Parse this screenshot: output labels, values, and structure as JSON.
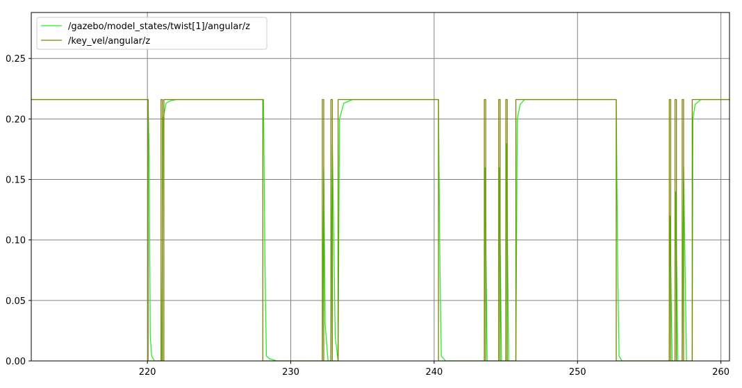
{
  "chart_data": {
    "type": "line",
    "xlim": [
      211.9,
      260.6
    ],
    "ylim": [
      0.0,
      0.288
    ],
    "xticks": [
      220,
      230,
      240,
      250,
      260
    ],
    "yticks": [
      0.0,
      0.05,
      0.1,
      0.15,
      0.2,
      0.25
    ],
    "xtick_labels": [
      "220",
      "230",
      "240",
      "250",
      "260"
    ],
    "ytick_labels": [
      "0.00",
      "0.05",
      "0.10",
      "0.15",
      "0.20",
      "0.25"
    ],
    "grid": true,
    "legend_position": "top-left",
    "high_value": 0.216,
    "series": [
      {
        "name": "/gazebo/model_states/twist[1]/angular/z",
        "color": "#22ee22",
        "x": [
          211.9,
          220.05,
          220.12,
          220.2,
          220.3,
          220.5,
          221.0,
          221.1,
          221.3,
          221.6,
          222.0,
          228.1,
          228.2,
          228.3,
          228.5,
          229.0,
          232.2,
          232.3,
          232.4,
          232.6,
          232.8,
          232.9,
          233.1,
          233.3,
          233.4,
          233.7,
          234.3,
          240.3,
          240.4,
          240.5,
          240.8,
          243.5,
          243.55,
          243.7,
          244.5,
          244.55,
          244.7,
          245.0,
          245.05,
          245.2,
          245.7,
          245.8,
          246.0,
          246.3,
          252.7,
          252.8,
          252.9,
          253.1,
          256.4,
          256.45,
          256.6,
          256.8,
          256.85,
          257.0,
          257.3,
          257.4,
          257.6,
          258.0,
          258.05,
          258.2,
          258.6,
          260.6
        ],
        "y": [
          0.216,
          0.216,
          0.17,
          0.02,
          0.004,
          0.0,
          0.0,
          0.2,
          0.213,
          0.215,
          0.216,
          0.216,
          0.08,
          0.004,
          0.002,
          0.0,
          0.0,
          0.16,
          0.03,
          0.0,
          0.0,
          0.18,
          0.02,
          0.0,
          0.2,
          0.213,
          0.216,
          0.216,
          0.08,
          0.004,
          0.0,
          0.0,
          0.16,
          0.0,
          0.0,
          0.16,
          0.0,
          0.0,
          0.18,
          0.0,
          0.0,
          0.2,
          0.212,
          0.216,
          0.216,
          0.08,
          0.004,
          0.0,
          0.0,
          0.12,
          0.0,
          0.0,
          0.14,
          0.0,
          0.0,
          0.16,
          0.0,
          0.0,
          0.2,
          0.212,
          0.216,
          0.216
        ]
      },
      {
        "name": "/key_vel/angular/z",
        "color": "#808000",
        "x": [
          211.9,
          220.05,
          220.05,
          220.95,
          220.95,
          221.05,
          221.05,
          221.15,
          221.15,
          228.05,
          228.05,
          232.2,
          232.2,
          232.3,
          232.3,
          232.8,
          232.8,
          232.9,
          232.9,
          233.3,
          233.3,
          240.3,
          240.3,
          243.5,
          243.5,
          243.6,
          243.6,
          244.5,
          244.5,
          244.6,
          244.6,
          245.0,
          245.0,
          245.1,
          245.1,
          245.7,
          245.7,
          252.7,
          252.7,
          256.4,
          256.4,
          256.5,
          256.5,
          256.8,
          256.8,
          256.9,
          256.9,
          257.3,
          257.3,
          257.4,
          257.4,
          258.0,
          258.0,
          260.6
        ],
        "y": [
          0.216,
          0.216,
          0.0,
          0.0,
          0.216,
          0.216,
          0.0,
          0.0,
          0.216,
          0.216,
          0.0,
          0.0,
          0.216,
          0.216,
          0.0,
          0.0,
          0.216,
          0.216,
          0.0,
          0.0,
          0.216,
          0.216,
          0.0,
          0.0,
          0.216,
          0.216,
          0.0,
          0.0,
          0.216,
          0.216,
          0.0,
          0.0,
          0.216,
          0.216,
          0.0,
          0.0,
          0.216,
          0.216,
          0.0,
          0.0,
          0.216,
          0.216,
          0.0,
          0.0,
          0.216,
          0.216,
          0.0,
          0.0,
          0.216,
          0.216,
          0.0,
          0.0,
          0.216,
          0.216
        ]
      }
    ]
  }
}
